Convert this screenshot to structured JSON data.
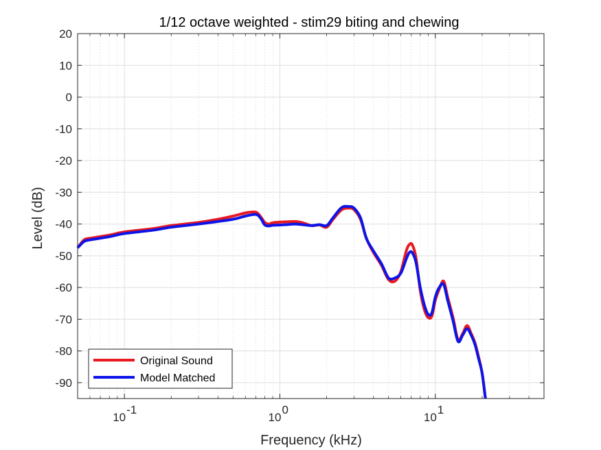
{
  "chart_data": {
    "type": "line",
    "title": "1/12 octave weighted - stim29 biting and chewing",
    "xlabel": "Frequency (kHz)",
    "ylabel": "Level (dB)",
    "x_scale": "log",
    "xlim": [
      0.05,
      50
    ],
    "ylim": [
      -95,
      20
    ],
    "x_ticks": [
      {
        "value": 0.1,
        "base": "10",
        "exp": "-1"
      },
      {
        "value": 1,
        "base": "10",
        "exp": "0"
      },
      {
        "value": 10,
        "base": "10",
        "exp": "1"
      }
    ],
    "y_ticks": [
      20,
      10,
      0,
      -10,
      -20,
      -30,
      -40,
      -50,
      -60,
      -70,
      -80,
      -90
    ],
    "grid": true,
    "minor_grid": true,
    "legend_location": "bottom-left",
    "series": [
      {
        "name": "Original Sound",
        "color": "#e8191f",
        "x": [
          0.05,
          0.055,
          0.06,
          0.08,
          0.1,
          0.15,
          0.2,
          0.3,
          0.4,
          0.5,
          0.6,
          0.68,
          0.72,
          0.76,
          0.8,
          0.85,
          0.9,
          1.0,
          1.1,
          1.25,
          1.4,
          1.6,
          1.8,
          2.0,
          2.2,
          2.5,
          2.8,
          3.0,
          3.3,
          3.6,
          4.0,
          4.5,
          5.0,
          5.5,
          6.0,
          6.5,
          6.8,
          7.1,
          7.5,
          8.0,
          8.5,
          9.0,
          9.5,
          10.0,
          10.6,
          11.3,
          12.0,
          13.0,
          14.0,
          15.0,
          16.0,
          17.0,
          18.0,
          19.0,
          20.0,
          21.0
        ],
        "y": [
          -47.5,
          -45.0,
          -44.5,
          -43.5,
          -42.5,
          -41.5,
          -40.5,
          -39.5,
          -38.5,
          -37.5,
          -36.5,
          -36.2,
          -36.6,
          -38.0,
          -39.5,
          -40.0,
          -39.6,
          -39.4,
          -39.3,
          -39.2,
          -39.6,
          -40.5,
          -40.3,
          -41.0,
          -38.5,
          -35.5,
          -35.0,
          -35.5,
          -38.5,
          -44.5,
          -49.0,
          -53.0,
          -57.5,
          -58.0,
          -55.0,
          -48.5,
          -46.5,
          -46.5,
          -50.5,
          -61.0,
          -67.0,
          -69.5,
          -69.0,
          -64.0,
          -60.5,
          -58.0,
          -63.0,
          -69.5,
          -76.5,
          -74.5,
          -72.0,
          -74.5,
          -77.5,
          -82.0,
          -87.0,
          -95.0
        ]
      },
      {
        "name": "Model Matched",
        "color": "#0d14e6",
        "x": [
          0.05,
          0.055,
          0.06,
          0.08,
          0.1,
          0.15,
          0.2,
          0.3,
          0.4,
          0.5,
          0.6,
          0.68,
          0.72,
          0.76,
          0.8,
          0.85,
          0.9,
          1.0,
          1.1,
          1.25,
          1.4,
          1.6,
          1.8,
          2.0,
          2.2,
          2.5,
          2.8,
          3.0,
          3.3,
          3.6,
          4.0,
          4.5,
          5.0,
          5.5,
          6.0,
          6.5,
          6.8,
          7.1,
          7.5,
          8.0,
          8.5,
          9.0,
          9.5,
          10.0,
          10.6,
          11.3,
          12.0,
          13.0,
          14.0,
          15.0,
          16.0,
          17.0,
          18.0,
          19.0,
          20.0,
          21.0
        ],
        "y": [
          -47.5,
          -45.5,
          -45.0,
          -44.0,
          -43.0,
          -42.0,
          -41.0,
          -40.0,
          -39.2,
          -38.5,
          -37.5,
          -37.0,
          -37.2,
          -38.5,
          -40.3,
          -40.6,
          -40.4,
          -40.3,
          -40.2,
          -40.0,
          -40.2,
          -40.5,
          -40.2,
          -40.5,
          -38.0,
          -34.8,
          -34.5,
          -35.0,
          -38.0,
          -44.5,
          -48.5,
          -52.5,
          -57.0,
          -57.0,
          -55.5,
          -51.0,
          -49.0,
          -49.0,
          -52.0,
          -60.0,
          -65.5,
          -68.5,
          -68.0,
          -63.0,
          -60.0,
          -59.0,
          -64.0,
          -70.5,
          -77.0,
          -75.0,
          -73.0,
          -75.0,
          -78.0,
          -82.5,
          -87.0,
          -95.0
        ]
      }
    ]
  }
}
